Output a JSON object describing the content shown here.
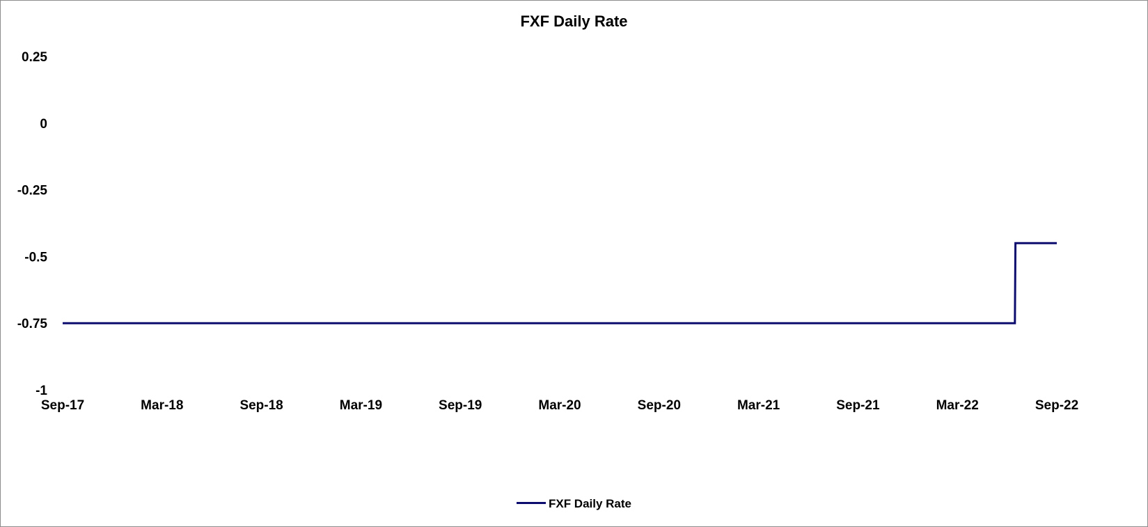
{
  "chart_data": {
    "type": "line",
    "title": "FXF Daily Rate",
    "xlabel": "",
    "ylabel": "",
    "x_tick_labels": [
      "Sep-17",
      "Mar-18",
      "Sep-18",
      "Mar-19",
      "Sep-19",
      "Mar-20",
      "Sep-20",
      "Mar-21",
      "Sep-21",
      "Mar-22",
      "Sep-22"
    ],
    "x_range": [
      "2017-09",
      "2022-09"
    ],
    "y_tick_labels": [
      "0.25",
      "0",
      "-0.25",
      "-0.5",
      "-0.75",
      "-1"
    ],
    "ylim": [
      -1,
      0.25
    ],
    "grid": false,
    "legend_position": "bottom",
    "series": [
      {
        "name": "FXF Daily Rate",
        "color": "#0c0c6e",
        "step": true,
        "points": [
          {
            "x": "2017-09-01",
            "y": -0.75
          },
          {
            "x": "2022-06-16",
            "y": -0.75
          },
          {
            "x": "2022-06-17",
            "y": -0.45
          },
          {
            "x": "2022-09-01",
            "y": -0.45
          }
        ]
      }
    ]
  }
}
